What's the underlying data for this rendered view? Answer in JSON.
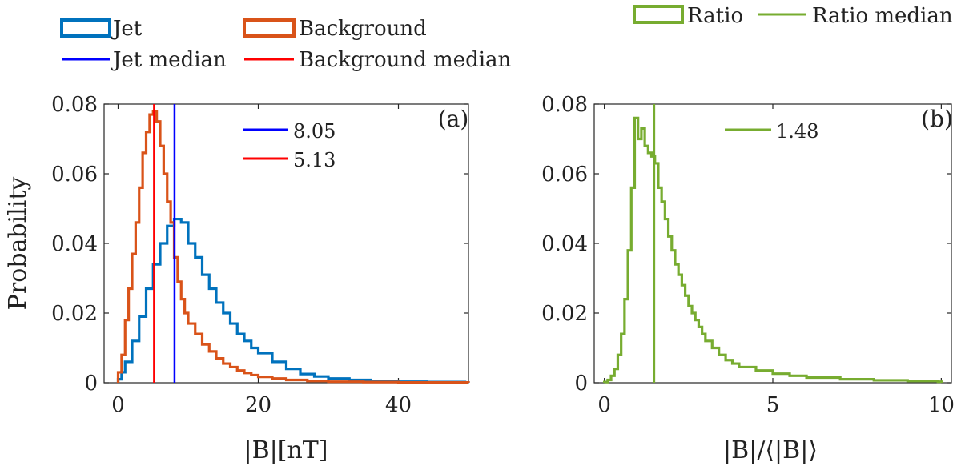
{
  "legend_left": {
    "jet": "Jet",
    "background": "Background",
    "jet_median": "Jet median",
    "background_median": "Background median"
  },
  "legend_right": {
    "ratio": "Ratio",
    "ratio_median": "Ratio median"
  },
  "colors": {
    "jet": "#0072BD",
    "background": "#D95319",
    "jet_median": "#0000FF",
    "background_median": "#FF0000",
    "ratio": "#77AC30",
    "ratio_median": "#77AC30"
  },
  "chart_data": [
    {
      "type": "histogram",
      "panel_label": "(a)",
      "title": "",
      "xlabel": "|B|[nT]",
      "ylabel": "Probability",
      "xlim": [
        -2,
        50
      ],
      "ylim": [
        0,
        0.08
      ],
      "xticks": [
        0,
        20,
        40
      ],
      "yticks": [
        0,
        0.02,
        0.04,
        0.06,
        0.08
      ],
      "xtick_labels": [
        "0",
        "20",
        "40"
      ],
      "ytick_labels": [
        "0",
        "0.02",
        "0.04",
        "0.06",
        "0.08"
      ],
      "bin_width": 0.5,
      "series": [
        {
          "name": "Jet",
          "color": "#0072BD",
          "points": [
            [
              0,
              0.001
            ],
            [
              0.5,
              0.003
            ],
            [
              1,
              0.006
            ],
            [
              2,
              0.012
            ],
            [
              3,
              0.019
            ],
            [
              4,
              0.027
            ],
            [
              5,
              0.034
            ],
            [
              6,
              0.04
            ],
            [
              7,
              0.045
            ],
            [
              8,
              0.047
            ],
            [
              9,
              0.046
            ],
            [
              10,
              0.04
            ],
            [
              11,
              0.036
            ],
            [
              12,
              0.031
            ],
            [
              13,
              0.027
            ],
            [
              14,
              0.023
            ],
            [
              15,
              0.02
            ],
            [
              16,
              0.017
            ],
            [
              17,
              0.014
            ],
            [
              18,
              0.012
            ],
            [
              19,
              0.01
            ],
            [
              20,
              0.0085
            ],
            [
              22,
              0.006
            ],
            [
              24,
              0.004
            ],
            [
              26,
              0.0025
            ],
            [
              28,
              0.0018
            ],
            [
              30,
              0.0012
            ],
            [
              33,
              0.0008
            ],
            [
              36,
              0.0005
            ],
            [
              40,
              0.0003
            ],
            [
              44,
              0.0002
            ],
            [
              49.5,
              0.0001
            ]
          ]
        },
        {
          "name": "Background",
          "color": "#D95319",
          "points": [
            [
              0,
              0.003
            ],
            [
              0.5,
              0.008
            ],
            [
              1,
              0.018
            ],
            [
              1.5,
              0.027
            ],
            [
              2,
              0.037
            ],
            [
              2.5,
              0.046
            ],
            [
              3,
              0.056
            ],
            [
              3.5,
              0.066
            ],
            [
              4,
              0.072
            ],
            [
              4.5,
              0.077
            ],
            [
              5,
              0.078
            ],
            [
              5.5,
              0.075
            ],
            [
              6,
              0.068
            ],
            [
              6.5,
              0.06
            ],
            [
              7,
              0.052
            ],
            [
              7.5,
              0.046
            ],
            [
              8,
              0.036
            ],
            [
              8.5,
              0.029
            ],
            [
              9,
              0.024
            ],
            [
              9.5,
              0.02
            ],
            [
              10,
              0.017
            ],
            [
              11,
              0.014
            ],
            [
              12,
              0.011
            ],
            [
              13,
              0.009
            ],
            [
              14,
              0.007
            ],
            [
              15,
              0.0055
            ],
            [
              16,
              0.0045
            ],
            [
              17,
              0.0035
            ],
            [
              18,
              0.0028
            ],
            [
              19,
              0.0022
            ],
            [
              20,
              0.0017
            ],
            [
              22,
              0.0012
            ],
            [
              24,
              0.0008
            ],
            [
              27,
              0.0005
            ],
            [
              30,
              0.0003
            ],
            [
              35,
              0.0002
            ],
            [
              40,
              0.0001
            ],
            [
              49.5,
              0.0001
            ]
          ]
        }
      ],
      "medians": [
        {
          "name": "Jet median",
          "value": 8.05,
          "label": "8.05",
          "color": "#0000FF"
        },
        {
          "name": "Background median",
          "value": 5.13,
          "label": "5.13",
          "color": "#FF0000"
        }
      ]
    },
    {
      "type": "histogram",
      "panel_label": "(b)",
      "title": "",
      "xlabel": "|B|/⟨|B|⟩",
      "ylabel": "",
      "xlim": [
        -0.3,
        10.3
      ],
      "ylim": [
        0,
        0.08
      ],
      "xticks": [
        0,
        5,
        10
      ],
      "yticks": [
        0,
        0.02,
        0.04,
        0.06,
        0.08
      ],
      "xtick_labels": [
        "0",
        "5",
        "10"
      ],
      "ytick_labels": [
        "0",
        "0.02",
        "0.04",
        "0.06",
        "0.08"
      ],
      "bin_width": 0.1,
      "series": [
        {
          "name": "Ratio",
          "color": "#77AC30",
          "points": [
            [
              0,
              0.0002
            ],
            [
              0.1,
              0.0008
            ],
            [
              0.2,
              0.002
            ],
            [
              0.3,
              0.004
            ],
            [
              0.4,
              0.008
            ],
            [
              0.5,
              0.014
            ],
            [
              0.6,
              0.024
            ],
            [
              0.7,
              0.038
            ],
            [
              0.8,
              0.056
            ],
            [
              0.9,
              0.076
            ],
            [
              1.0,
              0.07
            ],
            [
              1.1,
              0.073
            ],
            [
              1.2,
              0.068
            ],
            [
              1.3,
              0.066
            ],
            [
              1.4,
              0.065
            ],
            [
              1.5,
              0.063
            ],
            [
              1.6,
              0.056
            ],
            [
              1.7,
              0.052
            ],
            [
              1.8,
              0.047
            ],
            [
              1.9,
              0.042
            ],
            [
              2.0,
              0.038
            ],
            [
              2.1,
              0.034
            ],
            [
              2.2,
              0.031
            ],
            [
              2.3,
              0.028
            ],
            [
              2.4,
              0.025
            ],
            [
              2.5,
              0.022
            ],
            [
              2.6,
              0.02
            ],
            [
              2.7,
              0.018
            ],
            [
              2.8,
              0.016
            ],
            [
              2.9,
              0.014
            ],
            [
              3.0,
              0.012
            ],
            [
              3.2,
              0.01
            ],
            [
              3.4,
              0.008
            ],
            [
              3.6,
              0.0065
            ],
            [
              3.8,
              0.0055
            ],
            [
              4.0,
              0.0045
            ],
            [
              4.5,
              0.0035
            ],
            [
              5.0,
              0.0026
            ],
            [
              5.5,
              0.002
            ],
            [
              6.0,
              0.0015
            ],
            [
              7.0,
              0.001
            ],
            [
              8.0,
              0.0007
            ],
            [
              9.0,
              0.0005
            ],
            [
              9.9,
              0.0003
            ]
          ]
        }
      ],
      "medians": [
        {
          "name": "Ratio median",
          "value": 1.48,
          "label": "1.48",
          "color": "#77AC30"
        }
      ]
    }
  ]
}
